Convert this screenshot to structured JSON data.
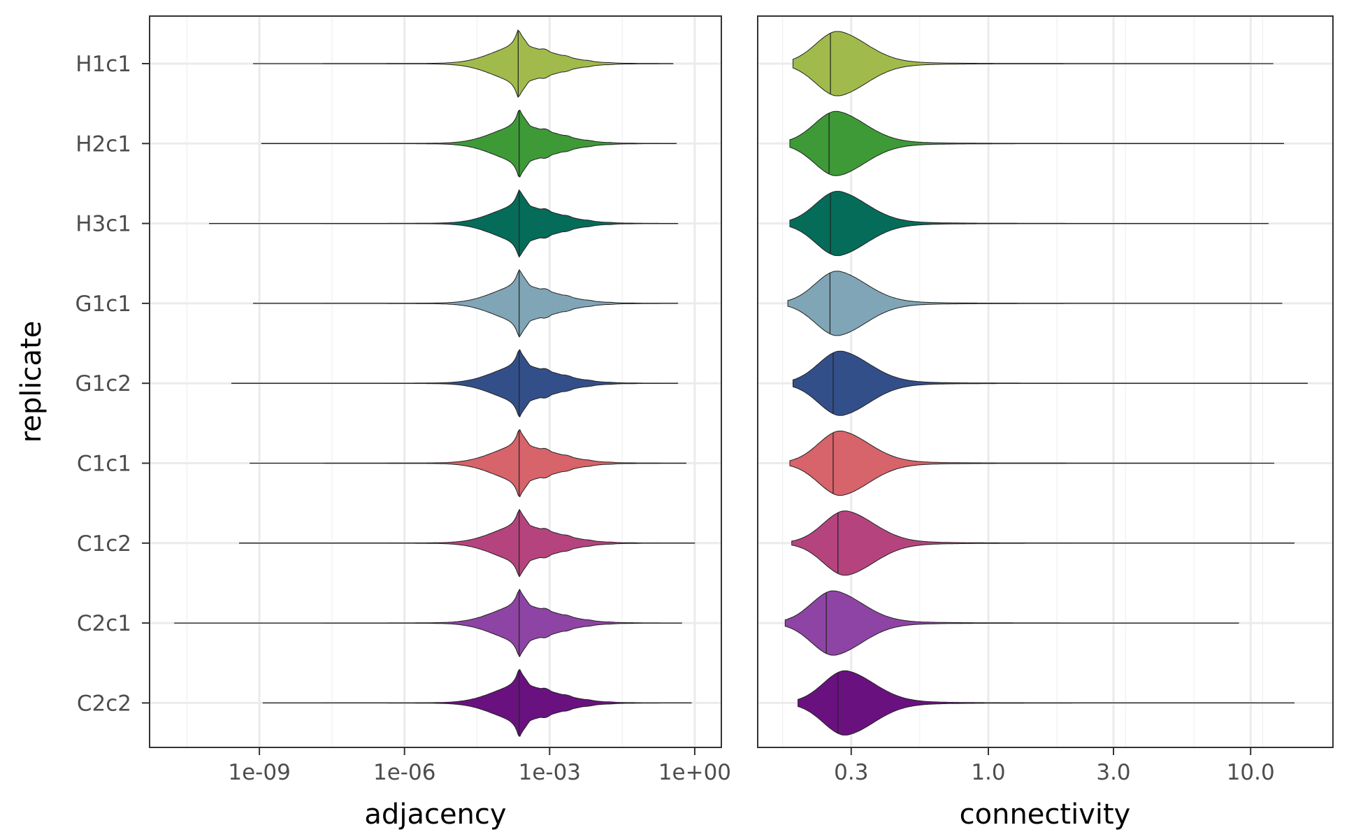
{
  "chart_data": [
    {
      "type": "violin",
      "panel": "left",
      "xlabel": "adjacency",
      "ylabel": "replicate",
      "xscale": "log10",
      "xlim_log10": [
        -11.27,
        0.55
      ],
      "xticks": [
        {
          "log10": -9,
          "label": "1e-09"
        },
        {
          "log10": -6,
          "label": "1e-06"
        },
        {
          "log10": -3,
          "label": "1e-03"
        },
        {
          "log10": 0,
          "label": "1e+00"
        }
      ],
      "grid": true
    },
    {
      "type": "violin",
      "panel": "right",
      "xlabel": "connectivity",
      "xscale": "log10",
      "xlim": [
        0.132,
        20.6
      ],
      "xticks": [
        {
          "value": 0.3,
          "label": "0.3"
        },
        {
          "value": 1.0,
          "label": "1.0"
        },
        {
          "value": 3.0,
          "label": "3.0"
        },
        {
          "value": 10.0,
          "label": "10.0"
        }
      ],
      "grid": true
    }
  ],
  "categories": [
    "H1c1",
    "H2c1",
    "H3c1",
    "G1c1",
    "G1c2",
    "C1c1",
    "C1c2",
    "C2c1",
    "C2c2"
  ],
  "series": [
    {
      "name": "H1c1",
      "color": "#a0bb4b",
      "adjacency": {
        "min_log10": -9.13,
        "max_log10": -0.45,
        "median_log10": -3.65
      },
      "connectivity": {
        "min": 0.18,
        "max": 12.2,
        "median": 0.25
      }
    },
    {
      "name": "H2c1",
      "color": "#3e9a37",
      "adjacency": {
        "min_log10": -8.96,
        "max_log10": -0.38,
        "median_log10": -3.63
      },
      "connectivity": {
        "min": 0.175,
        "max": 13.4,
        "median": 0.247
      }
    },
    {
      "name": "H3c1",
      "color": "#056c5a",
      "adjacency": {
        "min_log10": -10.04,
        "max_log10": -0.35,
        "median_log10": -3.63
      },
      "connectivity": {
        "min": 0.175,
        "max": 11.7,
        "median": 0.25
      }
    },
    {
      "name": "G1c1",
      "color": "#80a5b6",
      "adjacency": {
        "min_log10": -9.13,
        "max_log10": -0.35,
        "median_log10": -3.63
      },
      "connectivity": {
        "min": 0.172,
        "max": 13.2,
        "median": 0.249
      }
    },
    {
      "name": "G1c2",
      "color": "#334f8a",
      "adjacency": {
        "min_log10": -9.58,
        "max_log10": -0.35,
        "median_log10": -3.63
      },
      "connectivity": {
        "min": 0.18,
        "max": 16.5,
        "median": 0.256
      }
    },
    {
      "name": "C1c1",
      "color": "#d7636b",
      "adjacency": {
        "min_log10": -9.2,
        "max_log10": -0.18,
        "median_log10": -3.63
      },
      "connectivity": {
        "min": 0.175,
        "max": 12.3,
        "median": 0.256
      }
    },
    {
      "name": "C1c2",
      "color": "#b5447e",
      "adjacency": {
        "min_log10": -9.42,
        "max_log10": 0.0,
        "median_log10": -3.63
      },
      "connectivity": {
        "min": 0.178,
        "max": 14.7,
        "median": 0.267
      }
    },
    {
      "name": "C2c1",
      "color": "#8e44a4",
      "adjacency": {
        "min_log10": -10.76,
        "max_log10": -0.27,
        "median_log10": -3.63
      },
      "connectivity": {
        "min": 0.168,
        "max": 9.0,
        "median": 0.241
      }
    },
    {
      "name": "C2c2",
      "color": "#6a1180",
      "adjacency": {
        "min_log10": -8.93,
        "max_log10": -0.07,
        "median_log10": -3.63
      },
      "connectivity": {
        "min": 0.188,
        "max": 14.7,
        "median": 0.267
      }
    }
  ]
}
